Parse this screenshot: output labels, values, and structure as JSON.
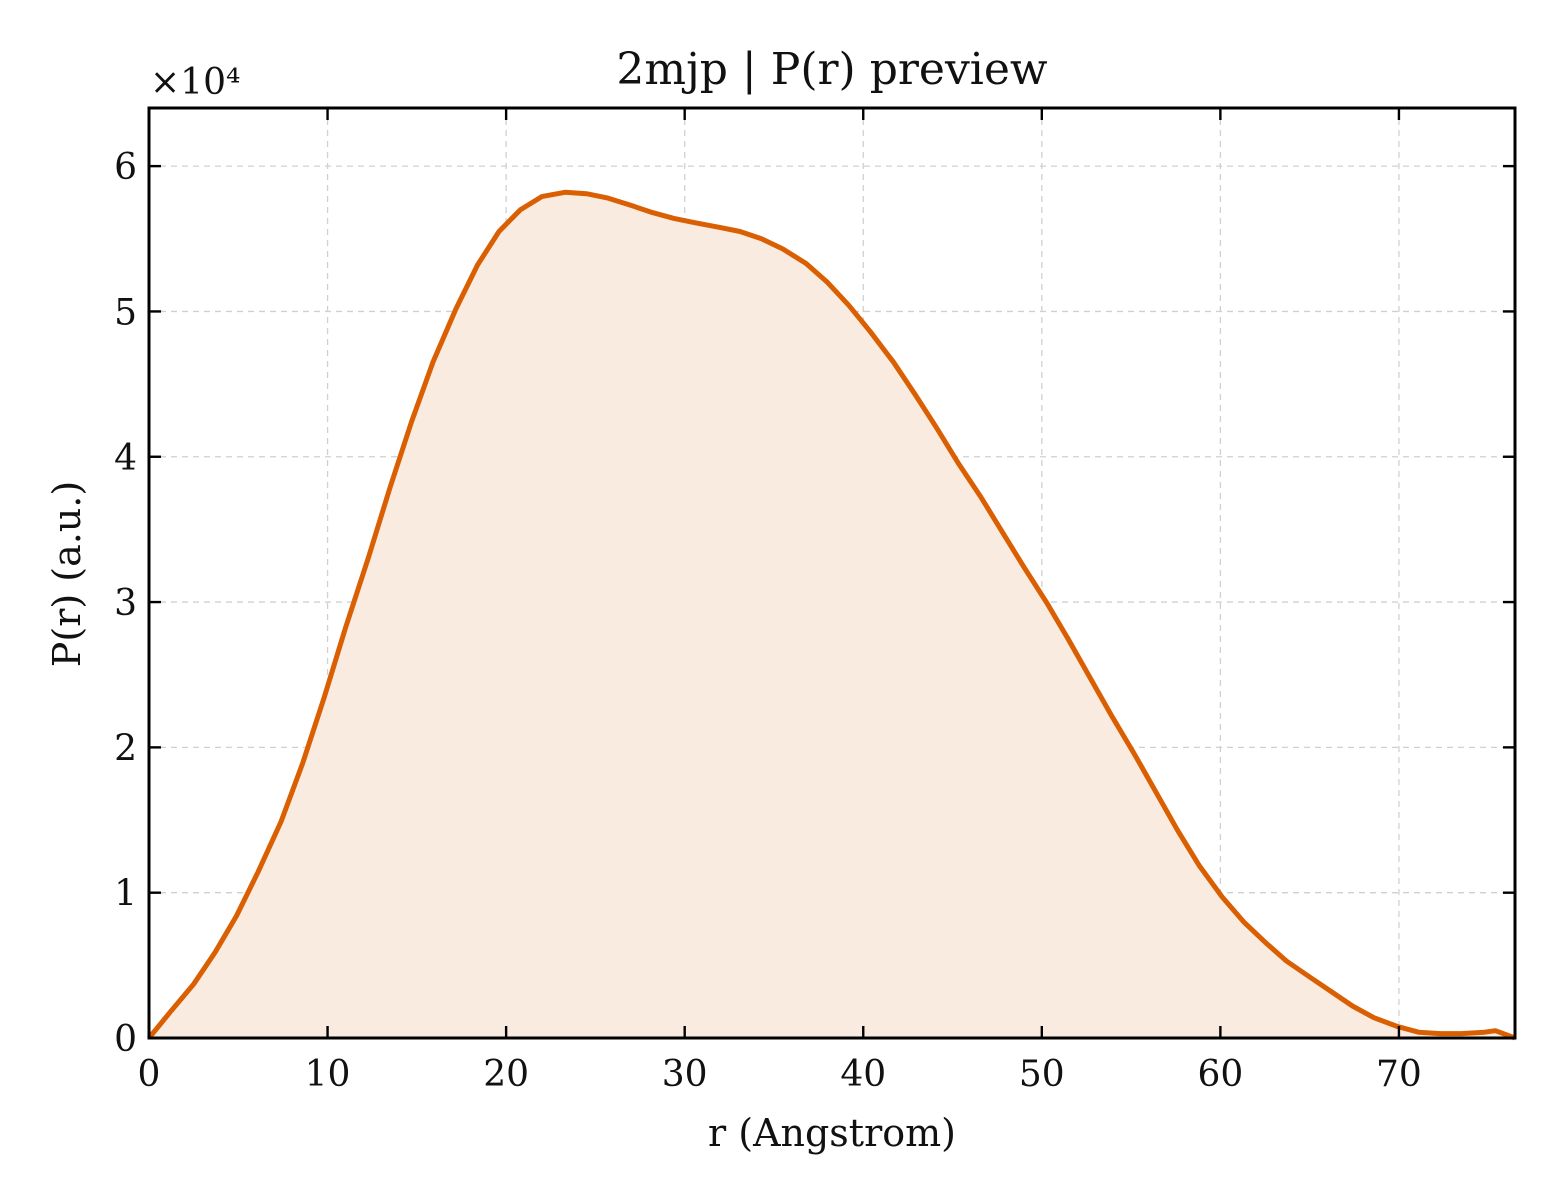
{
  "chart_data": {
    "type": "area",
    "title": "2mjp | P(r) preview",
    "xlabel": "r (Angstrom)",
    "ylabel": "P(r) (a.u.)",
    "y_multiplier_label": "×10⁴",
    "xlim": [
      0,
      76.5
    ],
    "ylim": [
      0,
      6.4
    ],
    "x_ticks": [
      0,
      10,
      20,
      30,
      40,
      50,
      60,
      70
    ],
    "y_ticks": [
      0,
      1,
      2,
      3,
      4,
      5,
      6
    ],
    "grid": true,
    "legend": false,
    "line_color": "#d95f02",
    "fill_color": "#f9ebe0",
    "series": [
      {
        "x": [
          0,
          1.2,
          2.5,
          3.7,
          4.9,
          6.1,
          7.4,
          8.6,
          9.8,
          11.0,
          12.3,
          13.5,
          14.7,
          15.9,
          17.2,
          18.4,
          19.6,
          20.8,
          22.0,
          23.3,
          24.5,
          25.7,
          27.0,
          28.2,
          29.4,
          30.6,
          31.9,
          33.1,
          34.3,
          35.5,
          36.8,
          38.0,
          39.2,
          40.4,
          41.7,
          42.9,
          44.1,
          45.3,
          46.6,
          47.8,
          49.0,
          50.3,
          51.5,
          52.7,
          53.9,
          55.2,
          56.4,
          57.6,
          58.8,
          60.1,
          61.3,
          62.5,
          63.7,
          65.0,
          66.2,
          67.4,
          68.6,
          69.9,
          71.1,
          72.3,
          73.5,
          74.8,
          75.4,
          76.5
        ],
        "y": [
          0.0,
          0.18,
          0.37,
          0.59,
          0.84,
          1.14,
          1.49,
          1.89,
          2.34,
          2.82,
          3.31,
          3.79,
          4.24,
          4.65,
          5.02,
          5.32,
          5.55,
          5.7,
          5.79,
          5.82,
          5.81,
          5.78,
          5.73,
          5.68,
          5.64,
          5.61,
          5.58,
          5.55,
          5.5,
          5.43,
          5.33,
          5.2,
          5.04,
          4.86,
          4.65,
          4.43,
          4.2,
          3.96,
          3.72,
          3.48,
          3.24,
          2.99,
          2.74,
          2.48,
          2.22,
          1.95,
          1.69,
          1.43,
          1.19,
          0.97,
          0.8,
          0.66,
          0.53,
          0.42,
          0.32,
          0.22,
          0.14,
          0.08,
          0.04,
          0.03,
          0.03,
          0.04,
          0.05,
          0.0
        ]
      }
    ]
  }
}
